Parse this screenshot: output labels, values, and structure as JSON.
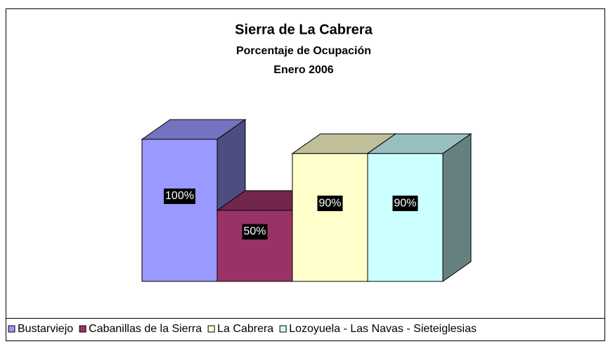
{
  "chart_data": {
    "type": "bar3d",
    "title": "Sierra de La Cabrera",
    "subtitle": "Porcentaje de Ocupación",
    "subtitle2": "Enero 2006",
    "ylim": [
      0,
      100
    ],
    "series": [
      {
        "name": "Bustarviejo",
        "color": "#9999ff",
        "values": [
          100
        ],
        "value_labels": [
          "100%"
        ]
      },
      {
        "name": "Cabanillas de la Sierra",
        "color": "#993366",
        "values": [
          50
        ],
        "value_labels": [
          "50%"
        ]
      },
      {
        "name": "La Cabrera",
        "color": "#ffffcc",
        "values": [
          90
        ],
        "value_labels": [
          "90%"
        ]
      },
      {
        "name": "Lozoyuela - Las Navas - Sieteiglesias",
        "color": "#ccffff",
        "values": [
          90
        ],
        "value_labels": [
          "90%"
        ]
      }
    ],
    "legend": "bottom"
  }
}
